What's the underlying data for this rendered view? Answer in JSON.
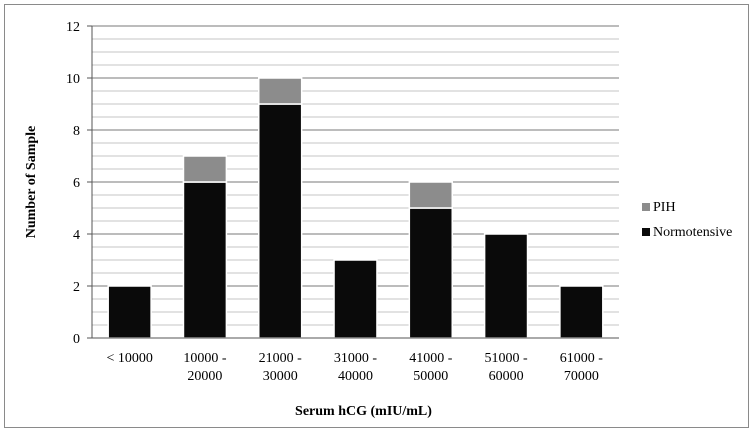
{
  "chart_data": {
    "type": "bar",
    "stacked": true,
    "title": "",
    "xlabel": "Serum hCG (mIU/mL)",
    "ylabel": "Number of Sample",
    "ylim": [
      0,
      12
    ],
    "ytick_step": 2,
    "grid": true,
    "legend_position": "right",
    "categories": [
      [
        "< 10000"
      ],
      [
        "10000 -",
        "20000"
      ],
      [
        "21000 -",
        "30000"
      ],
      [
        "31000 -",
        "40000"
      ],
      [
        "41000 -",
        "50000"
      ],
      [
        "51000 -",
        "60000"
      ],
      [
        "61000 -",
        "70000"
      ]
    ],
    "series": [
      {
        "name": "Normotensive",
        "color": "#0a0a0a",
        "values": [
          2,
          6,
          9,
          3,
          5,
          4,
          2
        ]
      },
      {
        "name": "PIH",
        "color": "#8c8c8c",
        "values": [
          0,
          1,
          1,
          0,
          1,
          0,
          0
        ]
      }
    ],
    "legend_order": [
      "PIH",
      "Normotensive"
    ]
  }
}
